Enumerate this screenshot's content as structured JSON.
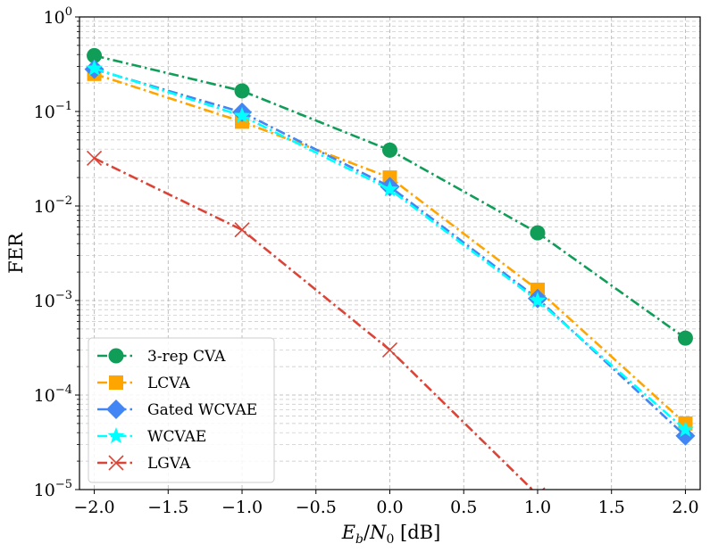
{
  "chart_data": {
    "type": "line",
    "xlabel": "E_b/N_0 [dB]",
    "xlabel_parts": {
      "e": "E",
      "b": "b",
      "slash": "/",
      "n": "N",
      "zero": "0",
      "unit": " [dB]"
    },
    "ylabel": "FER",
    "y_scale": "log",
    "xlim": [
      -2.1,
      2.1
    ],
    "ylim": [
      1e-05,
      1
    ],
    "grid": true,
    "legend_position": "lower-left",
    "x_ticks": [
      "−2.0",
      "−1.5",
      "−1.0",
      "−0.5",
      "0.0",
      "0.5",
      "1.0",
      "1.5",
      "2.0"
    ],
    "x_tick_values": [
      -2.0,
      -1.5,
      -1.0,
      -0.5,
      0.0,
      0.5,
      1.0,
      1.5,
      2.0
    ],
    "y_ticks": [
      {
        "value": 1,
        "base": "10",
        "exp": "0"
      },
      {
        "value": 0.1,
        "base": "10",
        "exp": "−1"
      },
      {
        "value": 0.01,
        "base": "10",
        "exp": "−2"
      },
      {
        "value": 0.001,
        "base": "10",
        "exp": "−3"
      },
      {
        "value": 0.0001,
        "base": "10",
        "exp": "−4"
      },
      {
        "value": 1e-05,
        "base": "10",
        "exp": "−5"
      }
    ],
    "x": [
      -2.0,
      -1.0,
      0.0,
      1.0,
      2.0
    ],
    "series": [
      {
        "name": "3-rep CVA",
        "color": "#0f9d58",
        "marker": "circle",
        "values": [
          0.39,
          0.165,
          0.039,
          0.0052,
          0.0004
        ]
      },
      {
        "name": "LCVA",
        "color": "#ffa500",
        "marker": "square",
        "values": [
          0.25,
          0.078,
          0.02,
          0.0013,
          5e-05
        ]
      },
      {
        "name": "Gated WCVAE",
        "color": "#4285f4",
        "marker": "diamond",
        "values": [
          0.28,
          0.098,
          0.016,
          0.00105,
          3.7e-05
        ]
      },
      {
        "name": "WCVAE",
        "color": "#00ffff",
        "marker": "star",
        "values": [
          0.285,
          0.09,
          0.015,
          0.001,
          4.3e-05
        ]
      },
      {
        "name": "LGVA",
        "color": "#db4437",
        "marker": "x",
        "values": [
          0.032,
          0.0056,
          0.0003,
          8.8e-06,
          null
        ]
      }
    ]
  }
}
